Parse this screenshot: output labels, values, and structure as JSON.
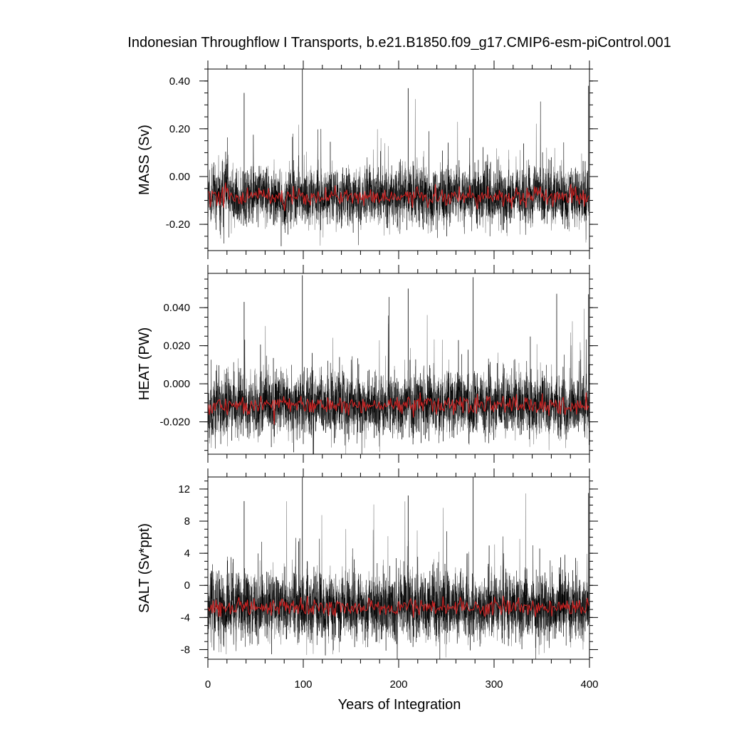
{
  "chart_data": {
    "type": "line",
    "title": "Indonesian Throughflow I Transports, b.e21.B1850.f09_g17.CMIP6-esm-piControl.001",
    "xlabel": "Years of Integration",
    "xlim": [
      0,
      400
    ],
    "xticks": [
      "0",
      "100",
      "200",
      "300",
      "400"
    ],
    "series_colors": {
      "monthly": "#000000",
      "annual_mean": "#cc2222"
    },
    "panels": [
      {
        "ylabel": "MASS (Sv)",
        "ylim": [
          -0.31,
          0.45
        ],
        "yticks": [
          {
            "value": 0.4,
            "label": "0.40"
          },
          {
            "value": 0.2,
            "label": "0.20"
          },
          {
            "value": 0.0,
            "label": "0.00"
          },
          {
            "value": -0.2,
            "label": "-0.20"
          }
        ],
        "mean": -0.085,
        "annual_spread": 0.02,
        "monthly_spread": 0.055,
        "max": 0.45,
        "min": -0.31,
        "spikes": [
          [
            38,
            0.35
          ],
          [
            99,
            0.45
          ],
          [
            210,
            0.37
          ],
          [
            278,
            0.45
          ],
          [
            399,
            0.38
          ]
        ]
      },
      {
        "ylabel": "HEAT (PW)",
        "ylim": [
          -0.037,
          0.058
        ],
        "yticks": [
          {
            "value": 0.04,
            "label": "0.040"
          },
          {
            "value": 0.02,
            "label": "0.020"
          },
          {
            "value": 0.0,
            "label": "0.000"
          },
          {
            "value": -0.02,
            "label": "-0.020"
          }
        ],
        "mean": -0.011,
        "annual_spread": 0.0025,
        "monthly_spread": 0.0075,
        "max": 0.057,
        "min": -0.037,
        "spikes": [
          [
            38,
            0.043
          ],
          [
            99,
            0.057
          ],
          [
            210,
            0.05
          ],
          [
            278,
            0.056
          ],
          [
            399,
            0.047
          ]
        ]
      },
      {
        "ylabel": "SALT (Sv*ppt)",
        "ylim": [
          -9.2,
          13.5
        ],
        "yticks": [
          {
            "value": 12,
            "label": "12"
          },
          {
            "value": 8,
            "label": "8"
          },
          {
            "value": 4,
            "label": "4"
          },
          {
            "value": 0,
            "label": "0"
          },
          {
            "value": -4,
            "label": "-4"
          },
          {
            "value": -8,
            "label": "-8"
          }
        ],
        "mean": -2.7,
        "annual_spread": 0.6,
        "monthly_spread": 1.9,
        "max": 13.5,
        "min": -9.0,
        "spikes": [
          [
            38,
            10.5
          ],
          [
            99,
            13.5
          ],
          [
            210,
            11.2
          ],
          [
            278,
            13.5
          ],
          [
            399,
            11.5
          ]
        ]
      }
    ]
  }
}
